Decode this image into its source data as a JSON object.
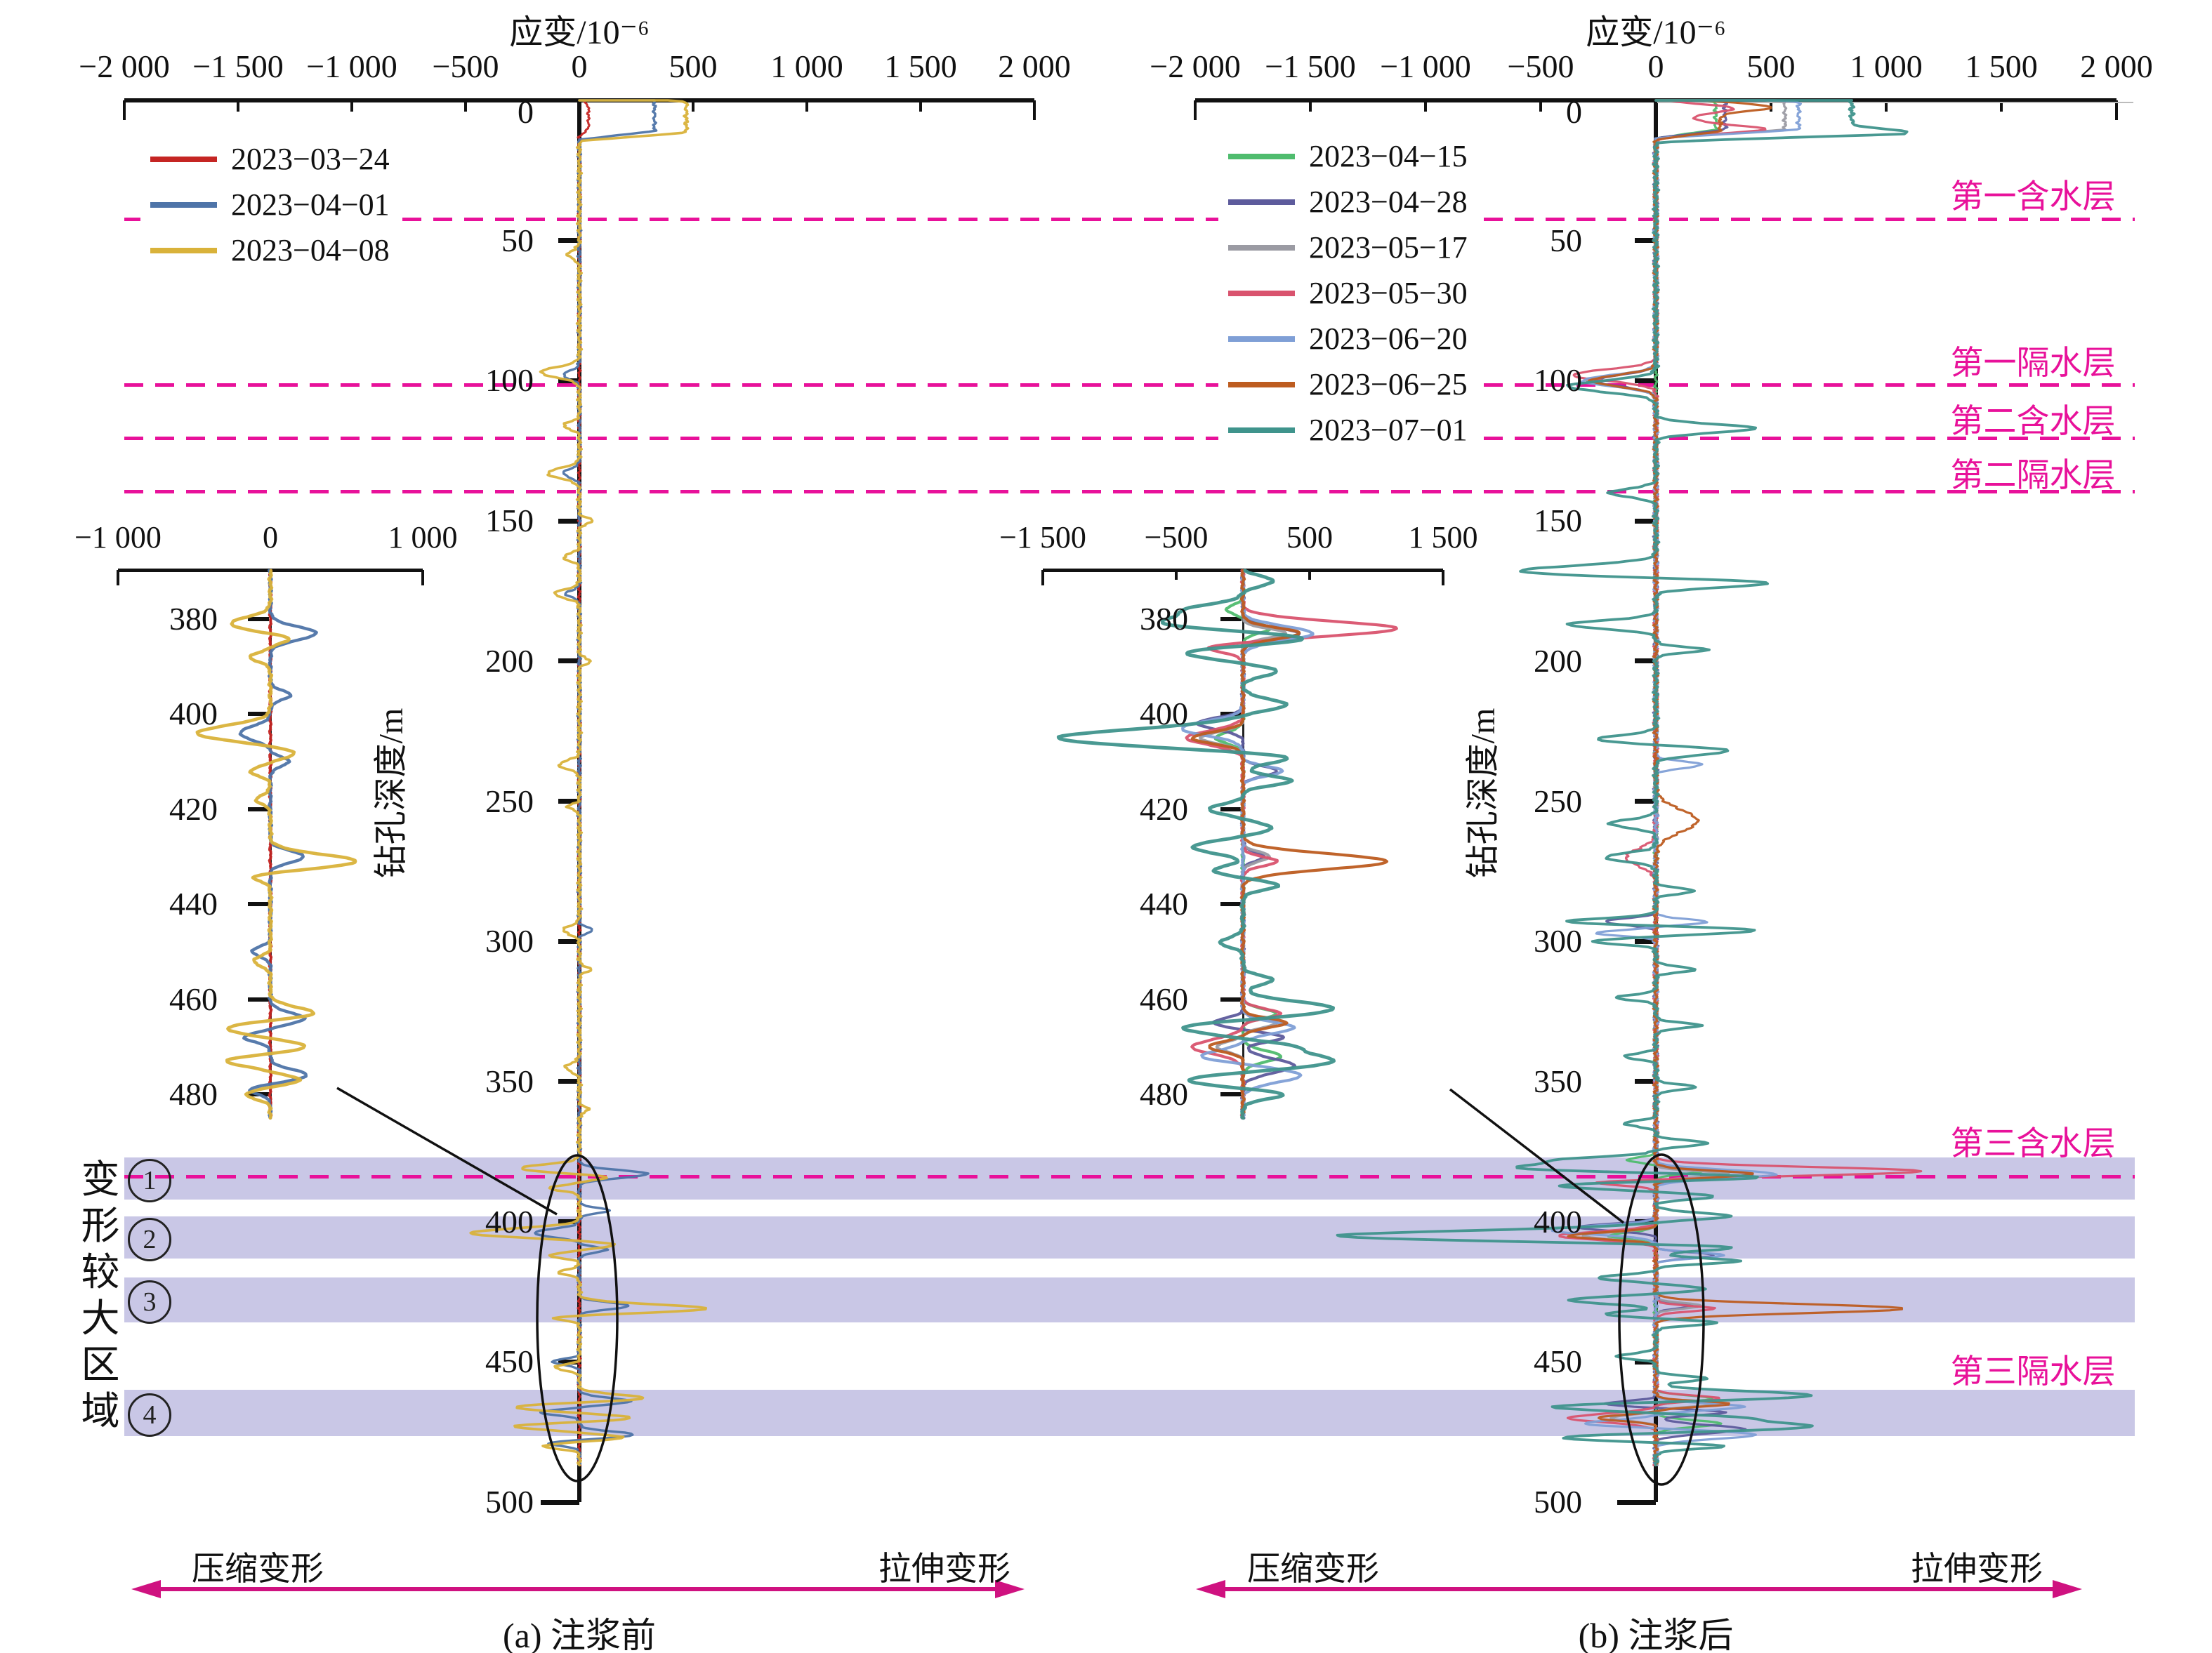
{
  "figure": {
    "strain_axis_title": "应变/10⁻⁶",
    "depth_axis_title": "钻孔深度/m",
    "compression_label": "压缩变形",
    "tension_label": "拉伸变形",
    "deform_region_chars": [
      "变",
      "形",
      "较",
      "大",
      "区",
      "域"
    ],
    "accent_magenta": "#e8119a",
    "arrow_magenta": "#cf1280",
    "band_color": "#c9c7e6",
    "axis_color": "#111111"
  },
  "layers": {
    "aquifers": [
      {
        "label": "第一含水层",
        "line_depth": 42.5,
        "label_depth": 31.3
      },
      {
        "label": "第一隔水层",
        "line_depth": 101.5,
        "label_depth": 90.6
      },
      {
        "label": "第二含水层",
        "line_depth": 120.5,
        "label_depth": 111.4
      },
      {
        "label": "第二隔水层",
        "line_depth": 139.5,
        "label_depth": 130.7
      },
      {
        "label": "第三含水层",
        "line_depth": 384,
        "label_depth": 369
      },
      {
        "label": "第三隔水层",
        "line_depth": null,
        "label_depth": 450.5
      }
    ],
    "highlight_bands": [
      {
        "marker": "①",
        "depth_range": [
          377,
          392
        ]
      },
      {
        "marker": "②",
        "depth_range": [
          398,
          413
        ]
      },
      {
        "marker": "③",
        "depth_range": [
          420,
          436
        ]
      },
      {
        "marker": "④",
        "depth_range": [
          460,
          476.5
        ]
      }
    ]
  },
  "chart_data": [
    {
      "type": "line",
      "panel": "a",
      "caption": "(a) 注浆前",
      "xlabel": "应变/10⁻⁶",
      "ylabel": "钻孔深度/m",
      "xlim": [
        -2000,
        2000
      ],
      "x_ticks": [
        -2000,
        -1500,
        -1000,
        -500,
        0,
        500,
        1000,
        1500,
        2000
      ],
      "x_tick_labels": [
        "−2 000",
        "−1 500",
        "−1 000",
        "−500",
        "0",
        "500",
        "1 000",
        "1 500",
        "2 000"
      ],
      "ylim": [
        0,
        500
      ],
      "depth_ticks": [
        0,
        50,
        100,
        150,
        200,
        250,
        300,
        350,
        400,
        450,
        500
      ],
      "legend": [
        {
          "label": "2023−03−24",
          "color": "#c52523"
        },
        {
          "label": "2023−04−01",
          "color": "#4e74a8"
        },
        {
          "label": "2023−04−08",
          "color": "#d9b23a"
        }
      ],
      "series": [
        {
          "name": "2023−03−24",
          "color": "#c52523",
          "width": 3.0,
          "noise": 7,
          "spikes": [
            [
              6,
              40,
              4,
              1
            ]
          ]
        },
        {
          "name": "2023−04−01",
          "color": "#4e74a8",
          "width": 3.4,
          "noise": 9,
          "spikes": [
            [
              5.5,
              330,
              5.5,
              1
            ],
            [
              98,
              -70,
              1.5
            ],
            [
              133,
              -70,
              1.5
            ],
            [
              176,
              -60,
              1.2
            ],
            [
              296,
              60,
              1
            ],
            [
              383,
              300,
              1.4
            ],
            [
              396,
              130,
              1
            ],
            [
              404,
              -200,
              1.4
            ],
            [
              410,
              120,
              1
            ],
            [
              430,
              220,
              1.2
            ],
            [
              450,
              -120,
              1
            ],
            [
              464,
              220,
              1.2
            ],
            [
              468,
              -170,
              1
            ],
            [
              476,
              240,
              1.2
            ],
            [
              479,
              -140,
              1
            ]
          ]
        },
        {
          "name": "2023−04−08",
          "color": "#d9b23a",
          "width": 3.6,
          "noise": 11,
          "spikes": [
            [
              6,
              470,
              5.5,
              1
            ],
            [
              55,
              -50,
              1.5
            ],
            [
              97,
              -170,
              1.8
            ],
            [
              116,
              -70,
              1.3
            ],
            [
              133,
              -140,
              1.8
            ],
            [
              150,
              60,
              1
            ],
            [
              163,
              -70,
              1.3
            ],
            [
              176,
              -110,
              1.5
            ],
            [
              200,
              50,
              1
            ],
            [
              237,
              -90,
              1.5
            ],
            [
              252,
              -50,
              1
            ],
            [
              296,
              -70,
              1.5
            ],
            [
              310,
              50,
              1
            ],
            [
              345,
              -60,
              1.5
            ],
            [
              360,
              40,
              1
            ],
            [
              381,
              -260,
              1.4
            ],
            [
              384,
              140,
              1
            ],
            [
              388,
              -130,
              1
            ],
            [
              404,
              -480,
              1.6
            ],
            [
              408,
              170,
              1.2
            ],
            [
              412,
              -130,
              1
            ],
            [
              418,
              -90,
              1
            ],
            [
              431,
              560,
              1.5
            ],
            [
              434,
              -160,
              1
            ],
            [
              452,
              -110,
              1
            ],
            [
              463,
              300,
              1.3
            ],
            [
              466,
              -300,
              1.3
            ],
            [
              470,
              240,
              1.1
            ],
            [
              473,
              -290,
              1.1
            ],
            [
              477,
              190,
              1
            ],
            [
              480,
              -160,
              1
            ]
          ]
        }
      ],
      "inset": {
        "xlim": [
          -1000,
          1000
        ],
        "x_ticks": [
          -1000,
          0,
          1000
        ],
        "x_tick_labels": [
          "−1 000",
          "0",
          "1 000"
        ],
        "depth_range": [
          380,
          480
        ],
        "depth_ticks": [
          380,
          400,
          420,
          440,
          460,
          480
        ]
      }
    },
    {
      "type": "line",
      "panel": "b",
      "caption": "(b) 注浆后",
      "xlabel": "应变/10⁻⁶",
      "ylabel": "钻孔深度/m",
      "xlim": [
        -2000,
        2000
      ],
      "x_ticks": [
        -2000,
        -1500,
        -1000,
        -500,
        0,
        500,
        1000,
        1500,
        2000
      ],
      "x_tick_labels": [
        "−2 000",
        "−1 500",
        "−1 000",
        "−500",
        "0",
        "500",
        "1 000",
        "1 500",
        "2 000"
      ],
      "ylim": [
        0,
        500
      ],
      "depth_ticks": [
        0,
        50,
        100,
        150,
        200,
        250,
        300,
        350,
        400,
        450,
        500
      ],
      "legend": [
        {
          "label": "2023−04−15",
          "color": "#4fbc6e"
        },
        {
          "label": "2023−04−28",
          "color": "#5d5b9c"
        },
        {
          "label": "2023−05−17",
          "color": "#9b9ba3"
        },
        {
          "label": "2023−05−30",
          "color": "#d9536e"
        },
        {
          "label": "2023−06−20",
          "color": "#7f9fd6"
        },
        {
          "label": "2023−06−25",
          "color": "#bd5c20"
        },
        {
          "label": "2023−07−01",
          "color": "#3f948c"
        }
      ],
      "series": [
        {
          "name": "2023−04−15",
          "color": "#4fbc6e",
          "width": 3.2,
          "noise": 10,
          "spikes": [
            [
              5.5,
              260,
              5,
              1
            ],
            [
              378,
              -120,
              1
            ],
            [
              382,
              200,
              1
            ],
            [
              405,
              -200,
              1.2
            ],
            [
              463,
              250,
              1
            ],
            [
              472,
              280,
              1.2
            ]
          ]
        },
        {
          "name": "2023−04−28",
          "color": "#5d5b9c",
          "width": 3.2,
          "noise": 12,
          "spikes": [
            [
              5.5,
              300,
              5,
              1
            ],
            [
              100,
              -260,
              2
            ],
            [
              293,
              -220,
              1.2
            ],
            [
              383,
              420,
              1.2
            ],
            [
              402,
              -340,
              1.2
            ],
            [
              412,
              260,
              1
            ],
            [
              430,
              150,
              1
            ],
            [
              465,
              -220,
              1
            ],
            [
              468,
              300,
              1
            ],
            [
              474,
              380,
              1.5
            ]
          ]
        },
        {
          "name": "2023−05−17",
          "color": "#9b9ba3",
          "width": 3.2,
          "noise": 10,
          "spikes": [
            [
              5.5,
              560,
              5,
              1
            ],
            [
              100,
              -300,
              2
            ],
            [
              383,
              320,
              1
            ],
            [
              405,
              -320,
              1.2
            ],
            [
              430,
              200,
              1
            ],
            [
              465,
              250,
              1
            ],
            [
              470,
              -200,
              1
            ]
          ]
        },
        {
          "name": "2023−05−30",
          "color": "#d9536e",
          "width": 3.2,
          "noise": 12,
          "spikes": [
            [
              3,
              180,
              1.2
            ],
            [
              6,
              160,
              4,
              1
            ],
            [
              10.5,
              330,
              1.5
            ],
            [
              98,
              -360,
              2
            ],
            [
              270,
              -130,
              3
            ],
            [
              382,
              1150,
              1.5
            ],
            [
              386,
              -280,
              1
            ],
            [
              405,
              -420,
              1.5
            ],
            [
              431,
              250,
              1
            ],
            [
              463,
              280,
              1
            ],
            [
              470,
              -380,
              1.5
            ]
          ]
        },
        {
          "name": "2023−06−20",
          "color": "#7f9fd6",
          "width": 3.2,
          "noise": 12,
          "spikes": [
            [
              5.5,
              620,
              5,
              1
            ],
            [
              100,
              -320,
              2
            ],
            [
              237,
              200,
              1.2
            ],
            [
              293,
              220,
              1
            ],
            [
              297,
              -260,
              1
            ],
            [
              383,
              520,
              1.5
            ],
            [
              403,
              -460,
              1.5
            ],
            [
              412,
              300,
              1
            ],
            [
              466,
              380,
              1.2
            ],
            [
              472,
              -320,
              1.2
            ],
            [
              476,
              430,
              1.5
            ]
          ]
        },
        {
          "name": "2023−06−25",
          "color": "#bd5c20",
          "width": 3.2,
          "noise": 12,
          "spikes": [
            [
              2.5,
              220,
              1.2
            ],
            [
              6,
              280,
              5,
              1
            ],
            [
              100,
              -280,
              2
            ],
            [
              257,
              180,
              4
            ],
            [
              383,
              420,
              1.2
            ],
            [
              405,
              -380,
              1.2
            ],
            [
              431,
              1080,
              1.6
            ],
            [
              465,
              320,
              1
            ],
            [
              470,
              -260,
              1
            ]
          ]
        },
        {
          "name": "2023−07−01",
          "color": "#3f948c",
          "width": 3.8,
          "noise": 14,
          "spikes": [
            [
              6,
              850,
              6,
              1
            ],
            [
              11.5,
              250,
              1.2
            ],
            [
              102,
              -380,
              2
            ],
            [
              117,
              430,
              1.5
            ],
            [
              140,
              -200,
              1.5
            ],
            [
              168,
              -600,
              2
            ],
            [
              172,
              560,
              1.5
            ],
            [
              187,
              -380,
              1.5
            ],
            [
              196,
              220,
              1
            ],
            [
              228,
              -260,
              1.5
            ],
            [
              232,
              320,
              1.5
            ],
            [
              258,
              -200,
              1.5
            ],
            [
              270,
              -220,
              1.5
            ],
            [
              282,
              170,
              1
            ],
            [
              293,
              -400,
              1.2
            ],
            [
              296,
              450,
              1.2
            ],
            [
              300,
              -280,
              1
            ],
            [
              310,
              170,
              1
            ],
            [
              320,
              -170,
              1
            ],
            [
              330,
              190,
              1
            ],
            [
              341,
              -140,
              1
            ],
            [
              352,
              170,
              1
            ],
            [
              365,
              -140,
              1
            ],
            [
              372,
              230,
              1
            ],
            [
              378,
              -380,
              1.2
            ],
            [
              381,
              -620,
              1.4
            ],
            [
              384,
              520,
              1.4
            ],
            [
              387,
              -470,
              1.2
            ],
            [
              391,
              260,
              1
            ],
            [
              398,
              320,
              1.2
            ],
            [
              405,
              -1380,
              1.8
            ],
            [
              409,
              420,
              1.2
            ],
            [
              414,
              360,
              1
            ],
            [
              420,
              -260,
              1
            ],
            [
              424,
              220,
              1
            ],
            [
              428,
              -380,
              1.2
            ],
            [
              433,
              -220,
              1
            ],
            [
              436,
              260,
              1
            ],
            [
              448,
              -170,
              1
            ],
            [
              456,
              220,
              1
            ],
            [
              462,
              680,
              1.5
            ],
            [
              466,
              -470,
              1.2
            ],
            [
              470,
              320,
              1
            ],
            [
              473,
              680,
              1.5
            ],
            [
              477,
              -430,
              1.2
            ],
            [
              480,
              310,
              1
            ]
          ]
        }
      ],
      "inset": {
        "xlim": [
          -1500,
          1500
        ],
        "x_ticks": [
          -1500,
          -500,
          500,
          1500
        ],
        "x_tick_labels": [
          "−1 500",
          "−500",
          "500",
          "1 500"
        ],
        "depth_range": [
          380,
          480
        ],
        "depth_ticks": [
          380,
          400,
          420,
          440,
          460,
          480
        ]
      }
    }
  ]
}
